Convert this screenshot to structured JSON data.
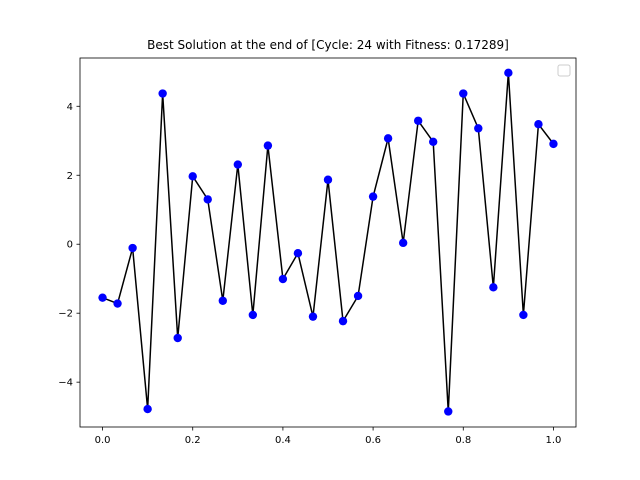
{
  "chart_data": {
    "type": "line",
    "title": "Best Solution at the end of [Cycle: 24 with Fitness: 0.17289]",
    "xlabel": "",
    "ylabel": "",
    "xlim": [
      -0.05,
      1.05
    ],
    "ylim": [
      -5.3,
      5.4
    ],
    "x_ticks": [
      0.0,
      0.2,
      0.4,
      0.6,
      0.8,
      1.0
    ],
    "x_tick_labels": [
      "0.0",
      "0.2",
      "0.4",
      "0.6",
      "0.8",
      "1.0"
    ],
    "y_ticks": [
      -4,
      -2,
      0,
      2,
      4
    ],
    "y_tick_labels": [
      "−4",
      "−2",
      "0",
      "2",
      "4"
    ],
    "grid": false,
    "legend": {
      "placement": "top-right",
      "entries": []
    },
    "line_color": "#000000",
    "marker_color": "#0000ff",
    "x": [
      0.0,
      0.0333,
      0.0667,
      0.1,
      0.1333,
      0.1667,
      0.2,
      0.2333,
      0.2667,
      0.3,
      0.3333,
      0.3667,
      0.4,
      0.4333,
      0.4667,
      0.5,
      0.5333,
      0.5667,
      0.6,
      0.6333,
      0.6667,
      0.7,
      0.7333,
      0.7667,
      0.8,
      0.8333,
      0.8667,
      0.9,
      0.9333,
      0.9667,
      1.0
    ],
    "y": [
      -1.55,
      -1.72,
      -0.11,
      -4.78,
      4.37,
      -2.72,
      1.97,
      1.3,
      -1.64,
      2.31,
      -2.05,
      2.86,
      -1.01,
      -0.26,
      -2.1,
      1.87,
      -2.23,
      -1.5,
      1.38,
      3.07,
      0.04,
      3.58,
      2.97,
      -4.85,
      4.37,
      3.36,
      -1.25,
      4.97,
      -2.05,
      3.48,
      2.91
    ]
  }
}
